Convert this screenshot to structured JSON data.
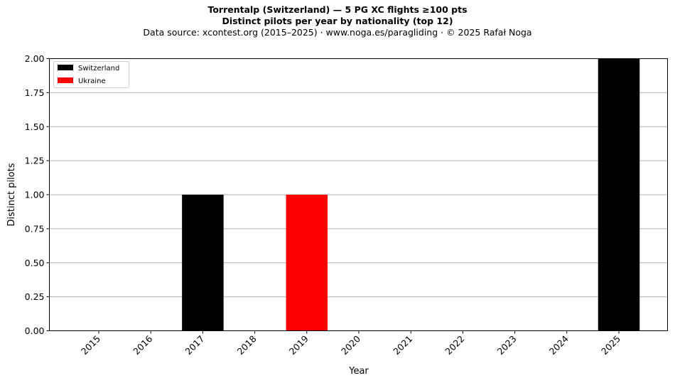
{
  "chart_data": {
    "type": "bar",
    "stacked": true,
    "title": "Torrentalp (Switzerland)  —  5 PG XC flights ≥100 pts",
    "subtitle": "Distinct pilots per year by nationality (top 12)",
    "source": "Data source: xcontest.org (2015–2025)  ·  www.noga.es/paragliding  ·  © 2025 Rafał Noga",
    "xlabel": "Year",
    "ylabel": "Distinct pilots",
    "categories": [
      "2015",
      "2016",
      "2017",
      "2018",
      "2019",
      "2020",
      "2021",
      "2022",
      "2023",
      "2024",
      "2025"
    ],
    "series": [
      {
        "name": "Switzerland",
        "color": "#000000",
        "values": [
          0,
          0,
          1,
          0,
          0,
          0,
          0,
          0,
          0,
          0,
          2
        ]
      },
      {
        "name": "Ukraine",
        "color": "#ff0000",
        "values": [
          0,
          0,
          0,
          0,
          1,
          0,
          0,
          0,
          0,
          0,
          0
        ]
      }
    ],
    "ylim": [
      0,
      2
    ],
    "yticks": [
      "0.00",
      "0.25",
      "0.50",
      "0.75",
      "1.00",
      "1.25",
      "1.50",
      "1.75",
      "2.00"
    ],
    "grid": "y",
    "legend": "top-left"
  }
}
